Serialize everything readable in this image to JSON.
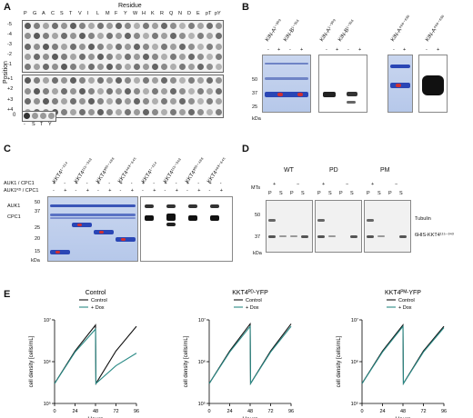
{
  "panels": {
    "A": {
      "letter": "A",
      "residue_title": "Residue",
      "position_title": "Position",
      "residues": [
        "P",
        "G",
        "A",
        "C",
        "S",
        "T",
        "V",
        "I",
        "L",
        "M",
        "F",
        "Y",
        "W",
        "H",
        "K",
        "R",
        "Q",
        "N",
        "D",
        "E",
        "pT",
        "pY"
      ],
      "rows_top": [
        "-5",
        "-4",
        "-3",
        "-2",
        "-1"
      ],
      "rows_bottom": [
        "+1",
        "+2",
        "+3",
        "+4"
      ],
      "row_zero": "0",
      "zero_residues": [
        "-",
        "S",
        "T",
        "Y"
      ]
    },
    "B": {
      "letter": "B",
      "constructs_left": [
        "KIN-A¹⁻³⁰⁹",
        "KIN-B¹⁻³¹⁶",
        "KIN-A¹⁻³⁰⁹",
        "KIN-B¹⁻³¹⁶"
      ],
      "constructs_right": [
        "KIN-A⁴⁶⁶⁻⁶³⁶",
        "KIN-A⁴⁶⁶⁻⁶³⁶"
      ],
      "markers": [
        "50",
        "37",
        "25"
      ],
      "unit": "kDa",
      "lane_signs": [
        "-",
        "+",
        "-",
        "+"
      ],
      "lane_signs_right": [
        "-",
        "+",
        "-",
        "+"
      ]
    },
    "C": {
      "letter": "C",
      "constructs": [
        "KKT4¹⁻¹¹⁴",
        "KKT4¹¹⁵⁻³⁴³",
        "KKT4³⁰⁰⁻⁴⁸⁸",
        "KKT4⁴⁶³⁻⁶⁴⁵",
        "KKT4¹⁻¹¹⁴",
        "KKT4¹¹⁵⁻³⁴³",
        "KKT4³⁰⁰⁻⁴⁸⁸",
        "KKT4⁴⁶³⁻⁶⁴⁵"
      ],
      "row1": "AUK1 / CPC1",
      "row2": "AUK1ᴷᴰ / CPC1",
      "signs1": [
        "+",
        "-",
        "+",
        "-",
        "+",
        "-",
        "+",
        "-",
        "+",
        "-",
        "+",
        "-",
        "+",
        "-",
        "+",
        "-"
      ],
      "signs2": [
        "-",
        "+",
        "-",
        "+",
        "-",
        "+",
        "-",
        "+",
        "-",
        "+",
        "-",
        "+",
        "-",
        "+",
        "-",
        "+"
      ],
      "band_labels": [
        "AUK1",
        "CPC1"
      ],
      "markers": [
        "50",
        "37",
        "25",
        "20",
        "15"
      ],
      "unit": "kDa"
    },
    "D": {
      "letter": "D",
      "groups": [
        "WT",
        "PD",
        "PM"
      ],
      "mts_label": "MTs",
      "mts_signs": [
        "+",
        "−",
        "+",
        "−",
        "+",
        "−"
      ],
      "ps": [
        "P",
        "S",
        "P",
        "S",
        "P",
        "S",
        "P",
        "S",
        "P",
        "S",
        "P",
        "S"
      ],
      "markers": [
        "50",
        "37"
      ],
      "unit": "kDa",
      "right_labels": [
        "Tubulin",
        "6HIS-KKT4¹¹⁵⁻³⁴³"
      ]
    },
    "E": {
      "letter": "E",
      "titles": [
        "Control",
        "KKT4ᴾᴰ-YFP",
        "KKT4ᴾᴹ-YFP"
      ],
      "legend": [
        "Control",
        "+ Dox"
      ],
      "ylabel": "cell density [cells/mL]",
      "xlabel": "Hours"
    }
  },
  "colors": {
    "control": "#111111",
    "dox": "#2a8a86",
    "gel_blue": "#b9c9ea",
    "band_blue": "#1f3aa6",
    "band_red": "#d23030"
  },
  "chart_data": [
    {
      "type": "line",
      "title": "Control",
      "xlabel": "Hours",
      "ylabel": "cell density [cells/mL]",
      "xlim": [
        0,
        96
      ],
      "ylim": [
        100000,
        10000000
      ],
      "yscale": "log",
      "xticks": [
        "0",
        "24",
        "48",
        "72",
        "96"
      ],
      "yticks": [
        "10⁵",
        "10⁶",
        "10⁷"
      ],
      "series": [
        {
          "name": "Control",
          "x": [
            0,
            24,
            48,
            48.5,
            72,
            96
          ],
          "y": [
            300000,
            1800000,
            7500000,
            300000,
            1800000,
            7000000
          ]
        },
        {
          "name": "+ Dox",
          "x": [
            0,
            24,
            48,
            48.5,
            72,
            96
          ],
          "y": [
            300000,
            1700000,
            6000000,
            300000,
            800000,
            1600000
          ]
        }
      ]
    },
    {
      "type": "line",
      "title": "KKT4ᴾᴰ-YFP",
      "xlabel": "Hours",
      "ylabel": "cell density [cells/mL]",
      "xlim": [
        0,
        96
      ],
      "ylim": [
        100000,
        10000000
      ],
      "yscale": "log",
      "xticks": [
        "0",
        "24",
        "48",
        "72",
        "96"
      ],
      "yticks": [
        "10⁵",
        "10⁶",
        "10⁷"
      ],
      "series": [
        {
          "name": "Control",
          "x": [
            0,
            24,
            48,
            48.5,
            72,
            96
          ],
          "y": [
            300000,
            1800000,
            8000000,
            300000,
            1800000,
            8000000
          ]
        },
        {
          "name": "+ Dox",
          "x": [
            0,
            24,
            48,
            48.5,
            72,
            96
          ],
          "y": [
            300000,
            1700000,
            7000000,
            300000,
            1700000,
            7000000
          ]
        }
      ]
    },
    {
      "type": "line",
      "title": "KKT4ᴾᴹ-YFP",
      "xlabel": "Hours",
      "ylabel": "cell density [cells/mL]",
      "xlim": [
        0,
        96
      ],
      "ylim": [
        100000,
        10000000
      ],
      "yscale": "log",
      "xticks": [
        "0",
        "24",
        "48",
        "72",
        "96"
      ],
      "yticks": [
        "10⁵",
        "10⁶",
        "10⁷"
      ],
      "series": [
        {
          "name": "Control",
          "x": [
            0,
            24,
            48,
            48.5,
            72,
            96
          ],
          "y": [
            300000,
            1800000,
            7500000,
            300000,
            1800000,
            7000000
          ]
        },
        {
          "name": "+ Dox",
          "x": [
            0,
            24,
            48,
            48.5,
            72,
            96
          ],
          "y": [
            300000,
            1700000,
            7000000,
            300000,
            1700000,
            6500000
          ]
        }
      ]
    }
  ]
}
